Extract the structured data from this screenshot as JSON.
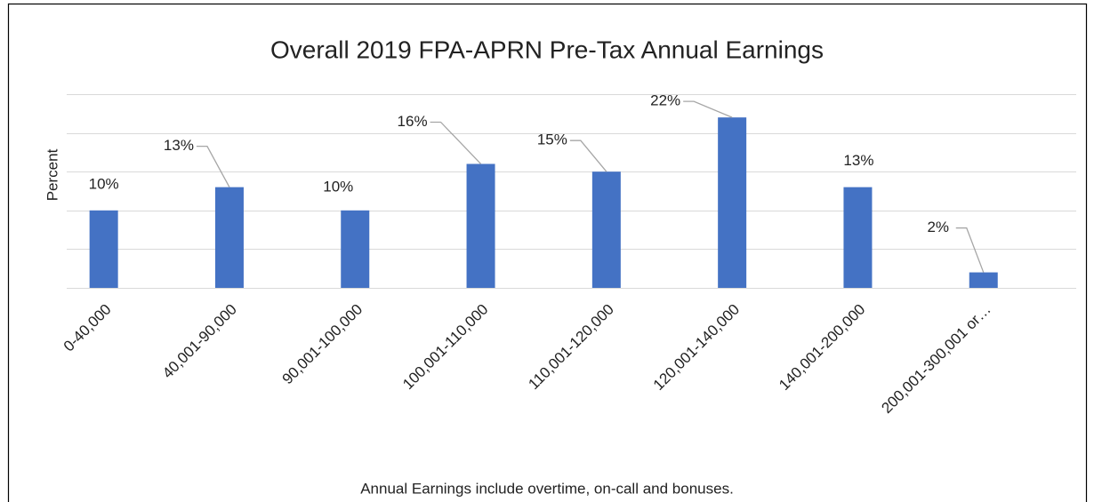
{
  "chart_data": {
    "type": "bar",
    "title": "Overall 2019 FPA-APRN Pre-Tax Annual Earnings",
    "y_label": "Percent",
    "x_label": "Annual Earnings include overtime, on-call and bonuses.",
    "categories": [
      "0-40,000",
      "40,001-90,000",
      "90,001-100,000",
      "100,001-110,000",
      "110,001-120,000",
      "120,001-140,000",
      "140,001-200,000",
      "200,001-300,001 or…"
    ],
    "values": [
      10,
      13,
      10,
      16,
      15,
      22,
      13,
      2
    ],
    "value_labels": [
      "10%",
      "13%",
      "10%",
      "16%",
      "15%",
      "22%",
      "13%",
      "2%"
    ],
    "color": "#4472c4",
    "ylim": [
      0,
      25
    ],
    "yticks": [
      0,
      5,
      10,
      15,
      20,
      25
    ],
    "grid": true
  }
}
